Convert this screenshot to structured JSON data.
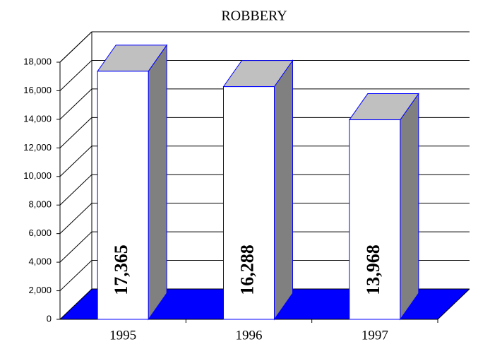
{
  "chart_data": {
    "type": "bar3d",
    "title": "ROBBERY",
    "categories": [
      "1995",
      "1996",
      "1997"
    ],
    "values": [
      17365,
      16288,
      13968
    ],
    "value_labels": [
      "17,365",
      "16,288",
      "13,968"
    ],
    "color": "#ffffff",
    "edge_color": "#0000ff",
    "top_color": "#c0c0c0",
    "side_color": "#808080",
    "floor_color": "#0000ff",
    "ylim": [
      0,
      18000
    ],
    "yticks": [
      0,
      {
        "value": 2000,
        "label": "2,000"
      },
      {
        "value": 4000,
        "label": "4,000"
      },
      {
        "value": 6000,
        "label": "6,000"
      },
      {
        "value": 8000,
        "label": "8,000"
      },
      {
        "value": 10000,
        "label": "10,000"
      },
      {
        "value": 12000,
        "label": "12,000"
      },
      {
        "value": 14000,
        "label": "14,000"
      },
      {
        "value": 16000,
        "label": "16,000"
      },
      {
        "value": 18000,
        "label": "18,000"
      }
    ],
    "grid": true
  }
}
